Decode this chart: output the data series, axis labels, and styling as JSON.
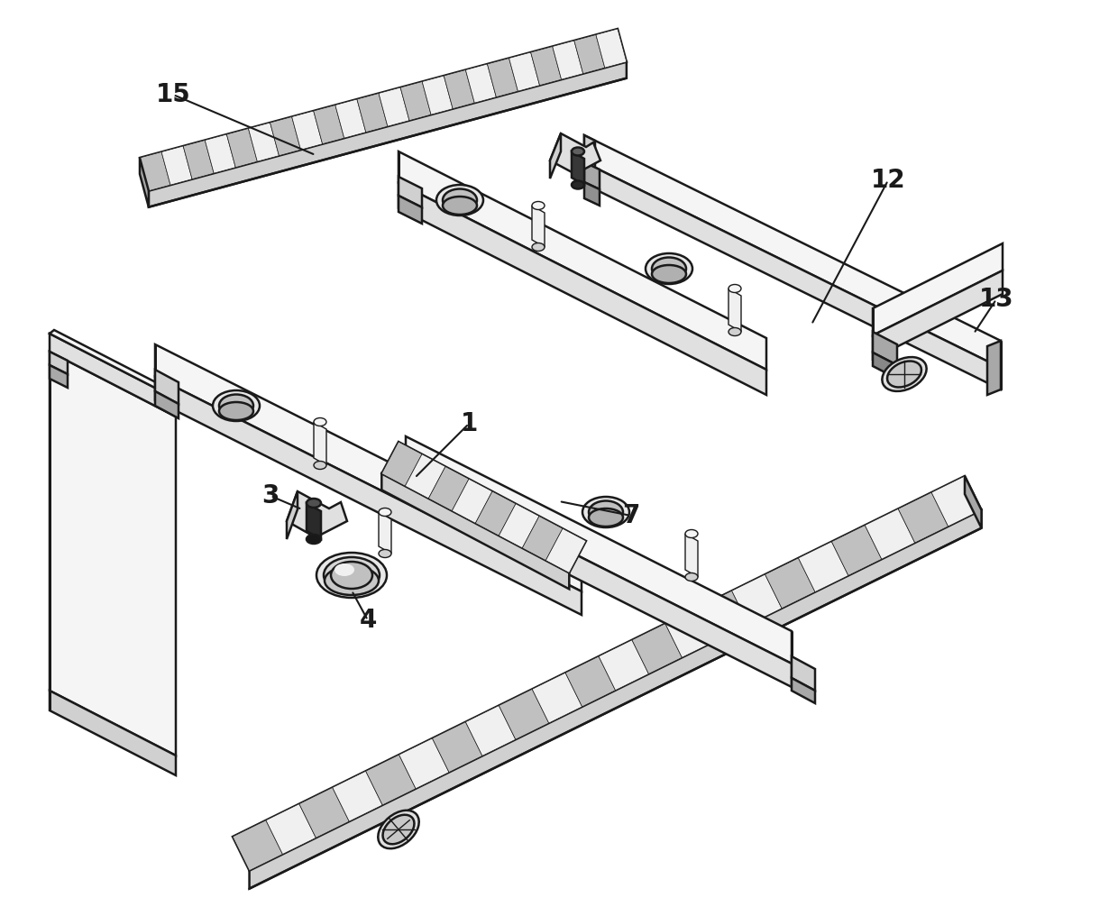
{
  "bg_color": "#ffffff",
  "line_color": "#1a1a1a",
  "figsize": [
    12.4,
    10.16
  ],
  "dpi": 100,
  "label_fontsize": 20,
  "lw_main": 1.8,
  "lw_thin": 1.0,
  "fill_top": "#f5f5f5",
  "fill_side": "#d0d0d0",
  "fill_front": "#e0e0e0",
  "fill_dark": "#a8a8a8",
  "fill_checker_dark": "#c0c0c0",
  "fill_checker_light": "#f0f0f0"
}
